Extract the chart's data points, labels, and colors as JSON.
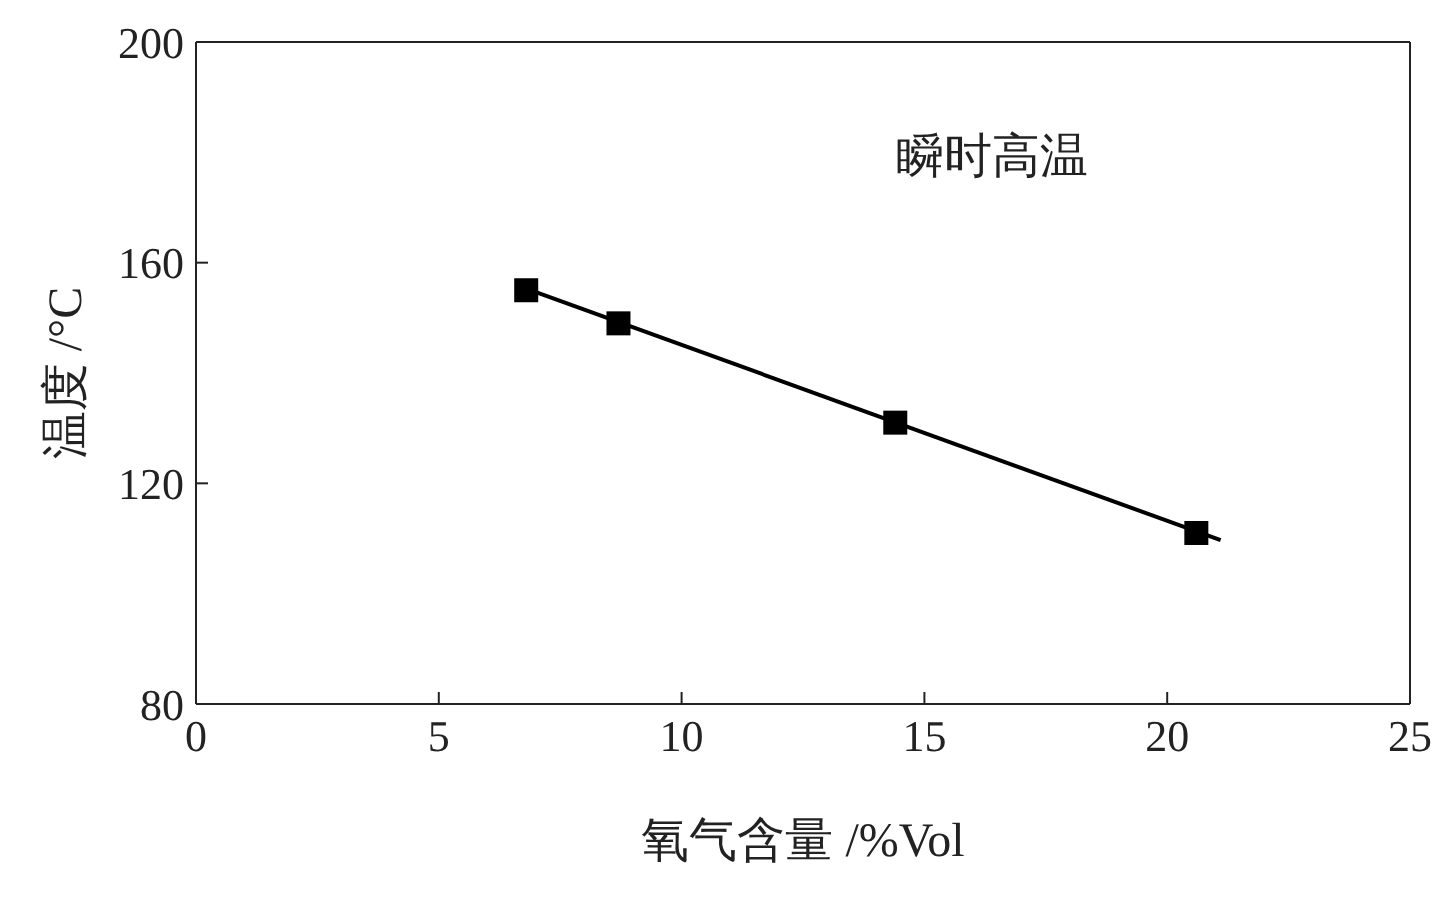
{
  "chart_data": {
    "type": "scatter",
    "xlabel": "氧气含量 /%Vol",
    "ylabel": "温度 /°C",
    "annotations": [
      "瞬时高温"
    ],
    "x": [
      6.8,
      8.7,
      14.4,
      20.6
    ],
    "series": [
      {
        "color": "#000000",
        "values": [
          155,
          149,
          131,
          111
        ],
        "marker": "square"
      },
      {
        "type": "line",
        "color": "#000000",
        "x": [
          6.8,
          21.1
        ],
        "values": [
          155.3,
          109.7
        ],
        "marker": "none"
      }
    ],
    "xlim": [
      0,
      25
    ],
    "xticks": [
      0,
      5,
      10,
      15,
      20,
      25
    ],
    "ylim": [
      80,
      200
    ],
    "yticks": [
      80,
      120,
      160,
      200
    ]
  }
}
